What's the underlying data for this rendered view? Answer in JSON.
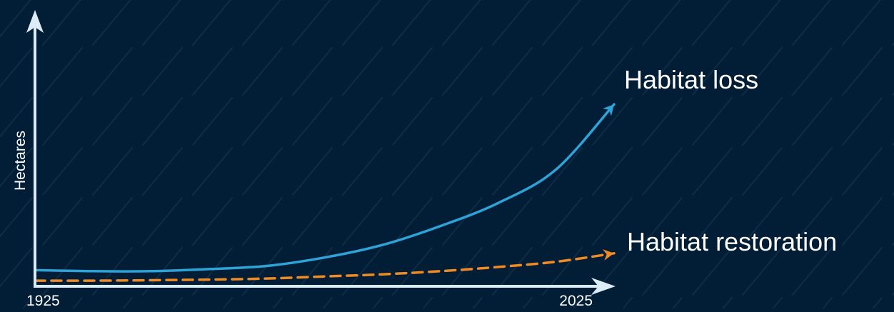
{
  "chart_data": {
    "type": "line",
    "title": "",
    "xlabel": "",
    "ylabel": "Hectares",
    "x": [
      1925,
      1935,
      1945,
      1955,
      1965,
      1975,
      1985,
      1995,
      2005,
      2015,
      2025
    ],
    "xlim": [
      1925,
      2025
    ],
    "ylim": [
      0,
      100
    ],
    "x_ticks": [
      "1925",
      "2025"
    ],
    "grid": false,
    "series": [
      {
        "name": "Habitat loss",
        "color": "#2ea3d8",
        "style": "solid",
        "values": [
          6,
          5.5,
          5.5,
          6.5,
          8,
          12,
          18,
          27,
          38,
          54,
          85
        ]
      },
      {
        "name": "Habitat restoration",
        "color": "#f08a24",
        "style": "dashed",
        "values": [
          1,
          1,
          1.2,
          1.5,
          2,
          3,
          4,
          5.5,
          7.5,
          10,
          14
        ]
      }
    ]
  },
  "colors": {
    "background": "#021d36",
    "axis": "#dcecf6",
    "text": "#ffffff",
    "texture": "#0f2c46"
  }
}
